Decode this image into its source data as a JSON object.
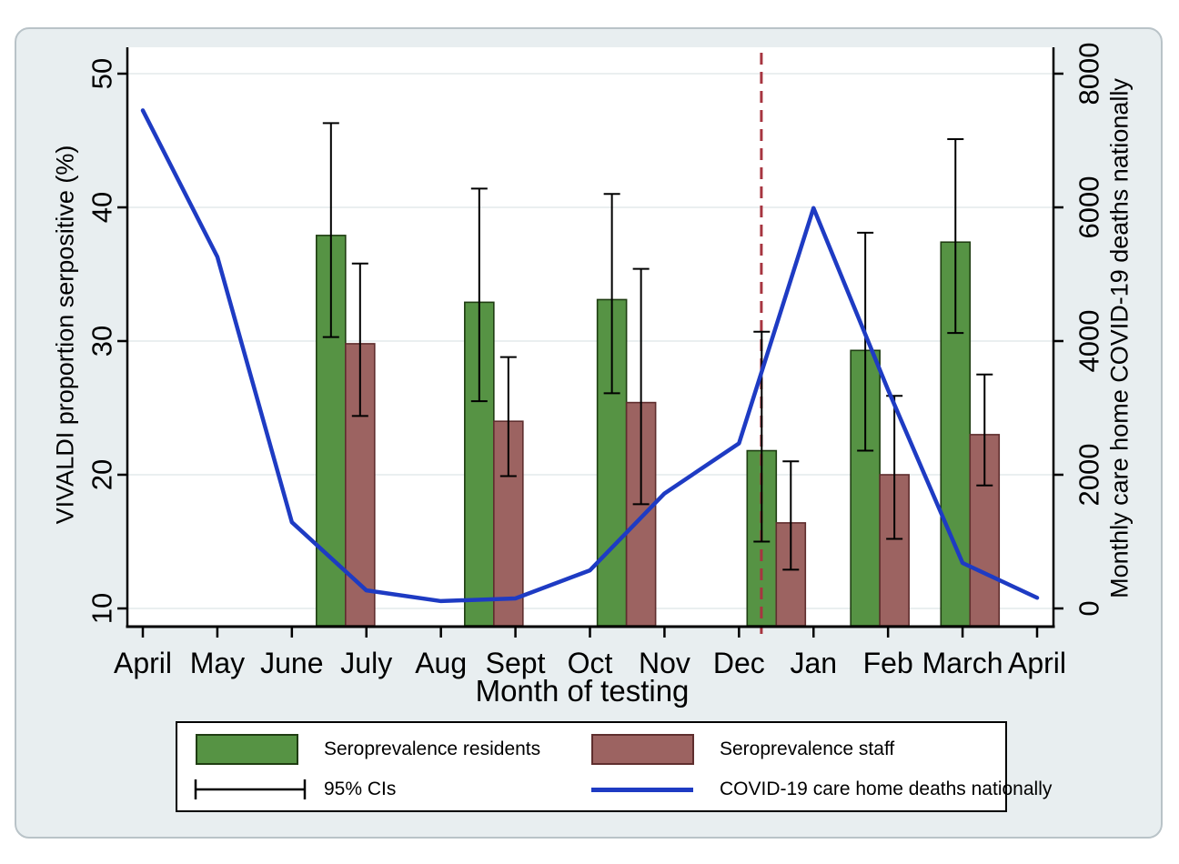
{
  "chart_data": {
    "type": "bar+line",
    "x_categories": [
      "April",
      "May",
      "June",
      "July",
      "Aug",
      "Sept",
      "Oct",
      "Nov",
      "Dec",
      "Jan",
      "Feb",
      "March",
      "April"
    ],
    "xlabel": "Month of testing",
    "left_axis": {
      "label": "VIVALDI proportion serpositive (%)",
      "ticks": [
        10,
        20,
        30,
        40,
        50
      ],
      "range": [
        10,
        50
      ]
    },
    "right_axis": {
      "label": "Monthly care home COVID-19 deaths nationally",
      "ticks": [
        0,
        2000,
        4000,
        6000,
        8000
      ],
      "range": [
        0,
        8000
      ]
    },
    "grid": true,
    "legend_position": "bottom",
    "bar_group_positions": [
      2.72,
      4.71,
      6.49,
      8.5,
      9.89,
      11.1
    ],
    "bar_group_months": [
      "June-July",
      "Aug-Sept",
      "Oct",
      "Dec-Jan",
      "Feb",
      "March"
    ],
    "bar_series": [
      {
        "name": "Seroprevalence residents",
        "key": "residents",
        "values": [
          37.9,
          32.9,
          33.1,
          21.8,
          29.3,
          37.4
        ],
        "ci_low": [
          30.3,
          25.5,
          26.1,
          15.0,
          21.8,
          30.6
        ],
        "ci_high": [
          46.3,
          41.4,
          41.0,
          30.7,
          38.1,
          45.1
        ]
      },
      {
        "name": "Seroprevalence staff",
        "key": "staff",
        "values": [
          29.8,
          24.0,
          25.4,
          16.4,
          20.0,
          23.0
        ],
        "ci_low": [
          24.4,
          19.9,
          17.8,
          12.9,
          15.2,
          19.2
        ],
        "ci_high": [
          35.8,
          28.8,
          35.4,
          21.0,
          25.9,
          27.5
        ]
      }
    ],
    "line_series": {
      "name": "COVID-19 care home deaths nationally",
      "axis": "right",
      "x": [
        0,
        1,
        2,
        3,
        4,
        5,
        6,
        7,
        8,
        9,
        10,
        11,
        12
      ],
      "values": [
        7450,
        5260,
        1290,
        270,
        110,
        150,
        570,
        1720,
        2470,
        5990,
        3270,
        680,
        160
      ]
    },
    "vline": {
      "x": 8.3,
      "style": "dashed"
    },
    "legend": {
      "residents": "Seroprevalence residents",
      "staff": "Seroprevalence staff",
      "cis": "95% CIs",
      "line": "COVID-19 care home deaths nationally"
    },
    "colors": {
      "residents": "#569344",
      "residents_border": "#1f3d12",
      "staff": "#9c6361",
      "staff_border": "#5f2e2e",
      "line": "#1e3bc3",
      "vline": "#a73540",
      "grid": "#e4eaec",
      "axis": "#000000",
      "plot_bg": "#ffffff",
      "panel_bg": "#e8eef0",
      "panel_border": "#b9c3c8"
    }
  }
}
